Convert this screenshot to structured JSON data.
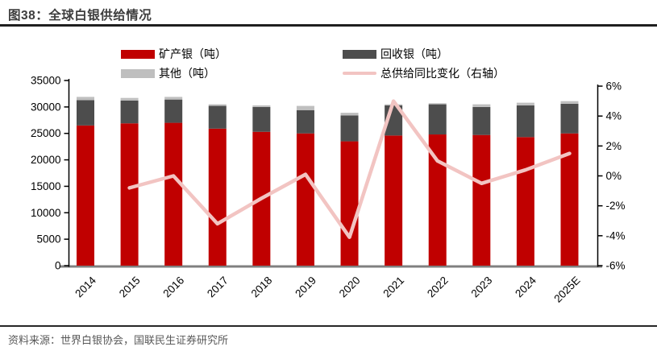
{
  "header": {
    "title": "图38：全球白银供给情况"
  },
  "legend": [
    {
      "label": "矿产银（吨）",
      "color": "#C00000",
      "type": "box"
    },
    {
      "label": "回收银（吨）",
      "color": "#4D4D4D",
      "type": "box"
    },
    {
      "label": "其他（吨）",
      "color": "#BFBFBF",
      "type": "box"
    },
    {
      "label": "总供给同比变化（右轴）",
      "color": "#F2C4C2",
      "type": "line"
    }
  ],
  "chart_data": {
    "type": "bar",
    "title": "全球白银供给情况",
    "categories": [
      "2014",
      "2015",
      "2016",
      "2017",
      "2018",
      "2019",
      "2020",
      "2021",
      "2022",
      "2023",
      "2024",
      "2025E"
    ],
    "series": [
      {
        "name": "矿产银（吨）",
        "type": "bar",
        "stack": true,
        "color": "#C00000",
        "values": [
          26500,
          26900,
          27000,
          25900,
          25300,
          25000,
          23500,
          24600,
          24800,
          24700,
          24300,
          25000
        ]
      },
      {
        "name": "回收银（吨）",
        "type": "bar",
        "stack": true,
        "color": "#4D4D4D",
        "values": [
          4800,
          4300,
          4400,
          4300,
          4700,
          4400,
          4900,
          5700,
          5700,
          5300,
          6000,
          5600
        ]
      },
      {
        "name": "其他（吨）",
        "type": "bar",
        "stack": true,
        "color": "#BFBFBF",
        "values": [
          600,
          500,
          500,
          300,
          300,
          800,
          500,
          200,
          200,
          500,
          500,
          500
        ]
      },
      {
        "name": "总供给同比变化（右轴）",
        "type": "line",
        "axis": "right",
        "color": "#F2C4C2",
        "values": [
          null,
          -0.8,
          0,
          -3.2,
          -1.5,
          0.1,
          -4.1,
          5,
          1,
          -0.5,
          0.4,
          1.5
        ]
      }
    ],
    "left_axis": {
      "min": 0,
      "max": 35000,
      "step": 5000,
      "tick_labels": [
        "35000",
        "30000",
        "25000",
        "20000",
        "15000",
        "10000",
        "5000",
        "0"
      ]
    },
    "right_axis": {
      "min": -6,
      "max": 6,
      "step": 2,
      "unit": "%",
      "tick_labels": [
        "6%",
        "4%",
        "2%",
        "0%",
        "-2%",
        "-4%",
        "-6%"
      ]
    },
    "legend_position": "top",
    "grid": false
  },
  "footer": {
    "source": "资料来源：世界白银协会，国联民生证券研究所"
  }
}
